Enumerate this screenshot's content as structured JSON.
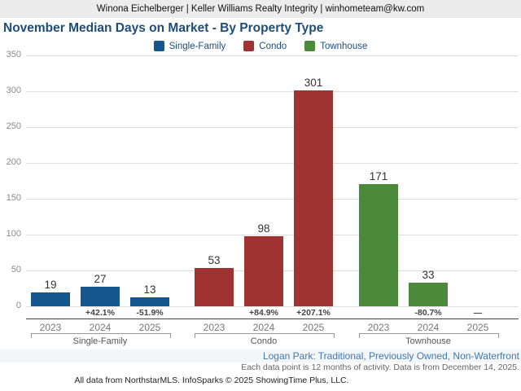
{
  "header": {
    "contact": "Winona Eichelberger | Keller Williams Realty Integrity | winhometeam@kw.com"
  },
  "title": "November Median Days on Market - By Property Type",
  "chart_data": {
    "type": "bar",
    "title": "November Median Days on Market - By Property Type",
    "categories": [
      "2023",
      "2024",
      "2025"
    ],
    "series": [
      {
        "name": "Single-Family",
        "color": "#15568D",
        "values": [
          19,
          27,
          13
        ],
        "pct_change": [
          "",
          "+42.1%",
          "-51.9%"
        ]
      },
      {
        "name": "Condo",
        "color": "#A13232",
        "values": [
          53,
          98,
          301
        ],
        "pct_change": [
          "",
          "+84.9%",
          "+207.1%"
        ]
      },
      {
        "name": "Townhouse",
        "color": "#4C8A3B",
        "values": [
          171,
          33,
          null
        ],
        "pct_change": [
          "",
          "-80.7%",
          "—"
        ]
      }
    ],
    "xlabel": "",
    "ylabel": "",
    "ylim": [
      0,
      350
    ],
    "ytick_step": 50,
    "grid": true,
    "legend_position": "top-center",
    "no_data_marker": "—"
  },
  "footer": {
    "filters": "Logan Park: Traditional, Previously Owned, Non-Waterfront",
    "note": "Each data point is 12 months of activity. Data is from December 14, 2025.",
    "attribution": "All data from NorthstarMLS. InfoSparks © 2025 ShowingTime Plus, LLC."
  }
}
